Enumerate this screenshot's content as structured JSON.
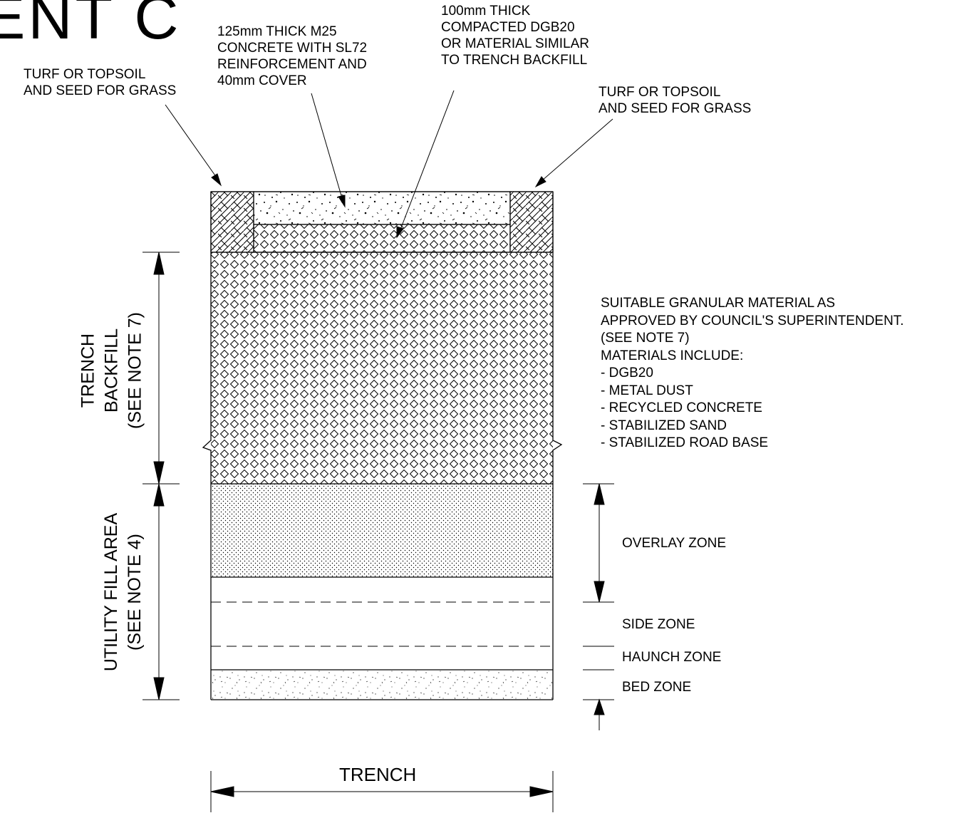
{
  "title_fragment": "ENT C",
  "labels": {
    "turf_left": [
      "TURF OR TOPSOIL",
      "AND SEED FOR GRASS"
    ],
    "concrete": [
      "125mm THICK M25",
      "CONCRETE WITH SL72",
      "REINFORCEMENT AND",
      "40mm COVER"
    ],
    "dgb20": [
      "100mm THICK",
      "COMPACTED  DGB20",
      "OR MATERIAL SIMILAR",
      "TO TRENCH BACKFILL"
    ],
    "turf_right": [
      "TURF OR TOPSOIL",
      "AND SEED FOR GRASS"
    ],
    "granular": [
      "SUITABLE GRANULAR MATERIAL AS",
      "APPROVED BY COUNCIL'S SUPERINTENDENT.",
      "(SEE NOTE 7)",
      "MATERIALS INCLUDE:",
      "- DGB20",
      "- METAL DUST",
      "- RECYCLED CONCRETE",
      "- STABILIZED SAND",
      "- STABILIZED ROAD BASE"
    ],
    "overlay_zone": "OVERLAY ZONE",
    "side_zone": "SIDE ZONE",
    "haunch_zone": "HAUNCH ZONE",
    "bed_zone": "BED ZONE",
    "trench_backfill": [
      "TRENCH",
      "BACKFILL",
      "(SEE NOTE 7)"
    ],
    "utility_fill": [
      "UTILITY FILL AREA",
      "(SEE NOTE 4)"
    ],
    "trench_width": "TRENCH"
  }
}
